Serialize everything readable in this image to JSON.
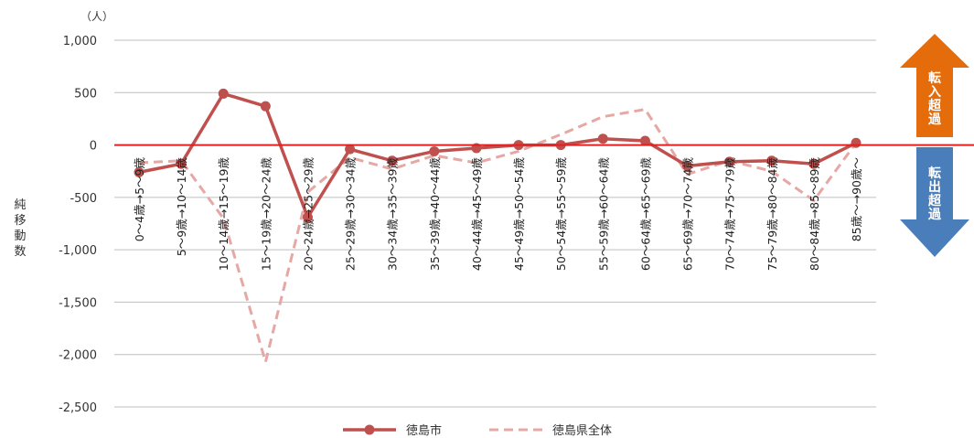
{
  "chart_data": {
    "type": "line",
    "unit_label": "（人）",
    "ylabel": "純移動数",
    "ylim": [
      -2500,
      1000
    ],
    "y_ticks": [
      1000,
      500,
      0,
      -500,
      -1000,
      -1500,
      -2000,
      -2500
    ],
    "y_tick_labels": [
      "1,000",
      "500",
      "0",
      "-500",
      "-1,000",
      "-1,500",
      "-2,000",
      "-2,500"
    ],
    "categories": [
      "0～4歳→5～9歳",
      "5～9歳→10～14歳",
      "10～14歳→15～19歳",
      "15～19歳→20～24歳",
      "20～24歳→25～29歳",
      "25～29歳→30～34歳",
      "30～34歳→35～39歳",
      "35～39歳→40～44歳",
      "40～44歳→45～49歳",
      "45～49歳→50～54歳",
      "50～54歳→55～59歳",
      "55～59歳→60～64歳",
      "60～64歳→65～69歳",
      "65～69歳→70～74歳",
      "70～74歳→75～79歳",
      "75～79歳→80～84歳",
      "80～84歳→85～89歳",
      "85歳～→90歳～"
    ],
    "series": [
      {
        "name": "徳島市",
        "values": [
          -260,
          -180,
          490,
          370,
          -690,
          -40,
          -150,
          -60,
          -30,
          0,
          0,
          60,
          40,
          -200,
          -160,
          -150,
          -180,
          20
        ]
      },
      {
        "name": "徳島県全体",
        "values": [
          -170,
          -150,
          -700,
          -2070,
          -450,
          -120,
          -230,
          -100,
          -170,
          -60,
          100,
          270,
          340,
          -280,
          -150,
          -250,
          -530,
          20
        ]
      }
    ],
    "grid": true,
    "legend": "bottom-center"
  },
  "colors": {
    "tokushima_city": "#c0504d",
    "tokushima_pref": "#e6a8a4",
    "zero_line": "#e02020",
    "grid": "#bfbfbf",
    "arrow_in": "#e46c0a",
    "arrow_out": "#4a7ebb"
  },
  "arrows": {
    "in_label": "転入超過",
    "out_label": "転出超過"
  }
}
